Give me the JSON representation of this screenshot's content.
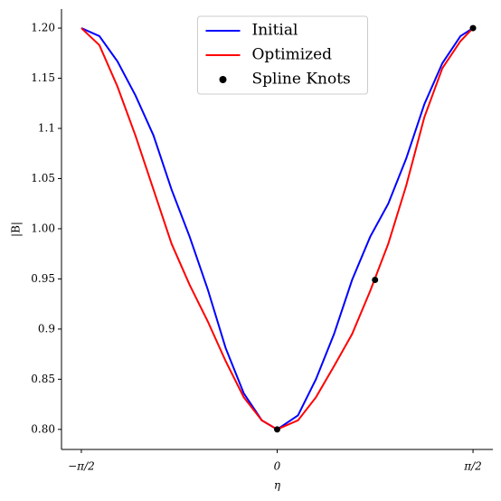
{
  "chart_data": {
    "type": "line",
    "xlabel": "η",
    "ylabel": "|B|",
    "x": [
      -1.5708,
      -1.426,
      -1.282,
      -1.137,
      -0.992,
      -0.847,
      -0.702,
      -0.558,
      -0.413,
      -0.268,
      -0.123,
      0,
      0.167,
      0.311,
      0.456,
      0.601,
      0.746,
      0.891,
      1.035,
      1.18,
      1.325,
      1.47,
      1.5708
    ],
    "series": [
      {
        "name": "Initial",
        "color": "#0000ff",
        "values": [
          1.2,
          1.192,
          1.167,
          1.133,
          1.093,
          1.039,
          0.992,
          0.94,
          0.881,
          0.836,
          0.809,
          0.8,
          0.814,
          0.85,
          0.895,
          0.949,
          0.992,
          1.025,
          1.07,
          1.124,
          1.165,
          1.192,
          1.2
        ]
      },
      {
        "name": "Optimized",
        "color": "#ff0000",
        "values": [
          1.2,
          1.183,
          1.142,
          1.093,
          1.039,
          0.985,
          0.944,
          0.908,
          0.868,
          0.832,
          0.809,
          0.8,
          0.809,
          0.832,
          0.863,
          0.895,
          0.938,
          0.985,
          1.043,
          1.111,
          1.16,
          1.187,
          1.2
        ]
      },
      {
        "name": "Spline Knots",
        "type": "scatter",
        "color": "#000000",
        "x": [
          0,
          0.785,
          1.5708
        ],
        "values": [
          0.8,
          0.949,
          1.2
        ]
      }
    ],
    "xlim": [
      -1.73,
      1.73
    ],
    "ylim": [
      0.78,
      1.219
    ],
    "xticks": [
      {
        "value": -1.5708,
        "label": "−π/2"
      },
      0,
      {
        "value": 1.5708,
        "label": "π/2"
      }
    ],
    "yticks": [
      {
        "value": 0.8,
        "label": "0.80"
      },
      0.85,
      0.9,
      0.95,
      {
        "value": 1.0,
        "label": "1.00"
      },
      1.05,
      1.1,
      1.15,
      {
        "value": 1.2,
        "label": "1.20"
      }
    ],
    "legend": "upper center"
  }
}
